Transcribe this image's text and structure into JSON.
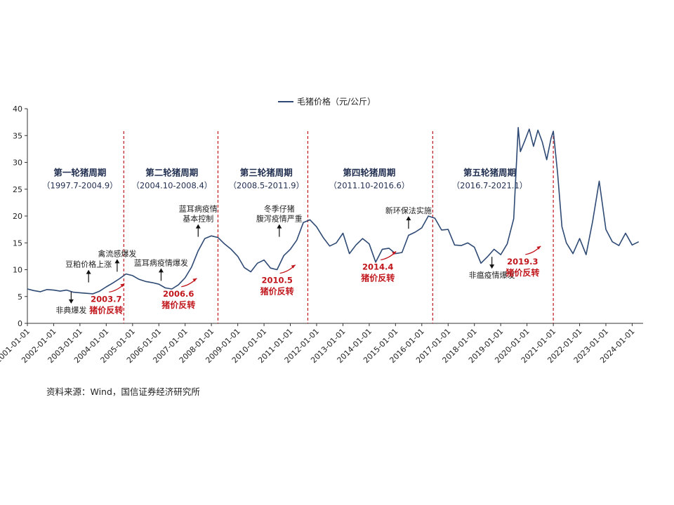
{
  "chart_data": {
    "type": "line",
    "legend": "毛猪价格（元/公斤）",
    "source": "资料来源：Wind，国信证券经济研究所",
    "ylim": [
      0,
      40
    ],
    "yticks": [
      0,
      5,
      10,
      15,
      20,
      25,
      30,
      35,
      40
    ],
    "xlim": [
      "2001-01-01",
      "2024-06-01"
    ],
    "xticks": [
      "2001-01-01",
      "2002-01-01",
      "2003-01-01",
      "2004-01-01",
      "2005-01-01",
      "2006-01-01",
      "2007-01-01",
      "2008-01-01",
      "2009-01-01",
      "2010-01-01",
      "2011-01-01",
      "2012-01-01",
      "2013-01-01",
      "2014-01-01",
      "2015-01-01",
      "2016-01-01",
      "2017-01-01",
      "2018-01-01",
      "2019-01-01",
      "2020-01-01",
      "2021-01-01",
      "2022-01-01",
      "2023-01-01",
      "2024-01-01"
    ],
    "series": [
      {
        "name": "毛猪价格（元/公斤）",
        "color": "#2e4a74",
        "points": [
          [
            "2001-01-01",
            6.4
          ],
          [
            "2001-04-01",
            6.1
          ],
          [
            "2001-07-01",
            5.9
          ],
          [
            "2001-10-01",
            6.3
          ],
          [
            "2002-01-01",
            6.2
          ],
          [
            "2002-04-01",
            6.0
          ],
          [
            "2002-07-01",
            6.2
          ],
          [
            "2002-10-01",
            5.8
          ],
          [
            "2003-01-01",
            5.7
          ],
          [
            "2003-04-01",
            5.6
          ],
          [
            "2003-07-01",
            5.5
          ],
          [
            "2003-10-01",
            6.0
          ],
          [
            "2004-01-01",
            6.8
          ],
          [
            "2004-04-01",
            7.5
          ],
          [
            "2004-07-01",
            8.3
          ],
          [
            "2004-10-01",
            9.2
          ],
          [
            "2005-01-01",
            8.9
          ],
          [
            "2005-04-01",
            8.2
          ],
          [
            "2005-07-01",
            7.8
          ],
          [
            "2005-10-01",
            7.6
          ],
          [
            "2006-01-01",
            7.3
          ],
          [
            "2006-04-01",
            6.6
          ],
          [
            "2006-07-01",
            6.4
          ],
          [
            "2006-10-01",
            7.2
          ],
          [
            "2007-01-01",
            8.5
          ],
          [
            "2007-04-01",
            10.5
          ],
          [
            "2007-07-01",
            13.5
          ],
          [
            "2007-10-01",
            15.8
          ],
          [
            "2008-01-01",
            16.3
          ],
          [
            "2008-04-01",
            16.0
          ],
          [
            "2008-07-01",
            14.8
          ],
          [
            "2008-10-01",
            13.8
          ],
          [
            "2009-01-01",
            12.5
          ],
          [
            "2009-04-01",
            10.4
          ],
          [
            "2009-07-01",
            9.6
          ],
          [
            "2009-10-01",
            11.2
          ],
          [
            "2010-01-01",
            11.8
          ],
          [
            "2010-04-01",
            10.3
          ],
          [
            "2010-07-01",
            10.0
          ],
          [
            "2010-10-01",
            12.6
          ],
          [
            "2011-01-01",
            13.8
          ],
          [
            "2011-04-01",
            15.5
          ],
          [
            "2011-07-01",
            18.8
          ],
          [
            "2011-10-01",
            19.3
          ],
          [
            "2012-01-01",
            18.0
          ],
          [
            "2012-04-01",
            16.0
          ],
          [
            "2012-07-01",
            14.4
          ],
          [
            "2012-10-01",
            15.0
          ],
          [
            "2013-01-01",
            16.8
          ],
          [
            "2013-04-01",
            13.0
          ],
          [
            "2013-07-01",
            14.6
          ],
          [
            "2013-10-01",
            15.8
          ],
          [
            "2014-01-01",
            14.8
          ],
          [
            "2014-04-01",
            11.4
          ],
          [
            "2014-07-01",
            13.8
          ],
          [
            "2014-10-01",
            14.0
          ],
          [
            "2015-01-01",
            13.0
          ],
          [
            "2015-04-01",
            13.2
          ],
          [
            "2015-07-01",
            16.4
          ],
          [
            "2015-10-01",
            17.0
          ],
          [
            "2016-01-01",
            17.8
          ],
          [
            "2016-04-01",
            20.0
          ],
          [
            "2016-07-01",
            19.6
          ],
          [
            "2016-10-01",
            17.4
          ],
          [
            "2017-01-01",
            17.5
          ],
          [
            "2017-04-01",
            14.6
          ],
          [
            "2017-07-01",
            14.5
          ],
          [
            "2017-10-01",
            15.0
          ],
          [
            "2018-01-01",
            14.2
          ],
          [
            "2018-04-01",
            11.2
          ],
          [
            "2018-07-01",
            12.4
          ],
          [
            "2018-10-01",
            13.8
          ],
          [
            "2019-01-01",
            12.8
          ],
          [
            "2019-04-01",
            14.8
          ],
          [
            "2019-07-01",
            19.5
          ],
          [
            "2019-09-01",
            36.5
          ],
          [
            "2019-10-01",
            32.0
          ],
          [
            "2019-12-01",
            34.0
          ],
          [
            "2020-02-01",
            36.2
          ],
          [
            "2020-04-01",
            33.0
          ],
          [
            "2020-06-01",
            36.0
          ],
          [
            "2020-08-01",
            33.8
          ],
          [
            "2020-10-01",
            30.5
          ],
          [
            "2020-12-01",
            34.5
          ],
          [
            "2021-01-01",
            35.8
          ],
          [
            "2021-03-01",
            28.0
          ],
          [
            "2021-05-01",
            18.0
          ],
          [
            "2021-07-01",
            15.0
          ],
          [
            "2021-10-01",
            13.0
          ],
          [
            "2022-01-01",
            15.8
          ],
          [
            "2022-04-01",
            12.8
          ],
          [
            "2022-07-01",
            19.0
          ],
          [
            "2022-10-01",
            26.5
          ],
          [
            "2023-01-01",
            17.5
          ],
          [
            "2023-04-01",
            15.2
          ],
          [
            "2023-07-01",
            14.5
          ],
          [
            "2023-10-01",
            16.8
          ],
          [
            "2024-01-01",
            14.6
          ],
          [
            "2024-04-01",
            15.2
          ]
        ]
      }
    ],
    "divider_dates": [
      "2004-09-01",
      "2008-04-01",
      "2011-09-01",
      "2016-06-01",
      "2021-01-01"
    ],
    "periods": [
      {
        "title": "第一轮猪周期",
        "range": "（1997.7-2004.9）",
        "date": "2003-01-01",
        "y": 26.5
      },
      {
        "title": "第二轮猪周期",
        "range": "（2004.10-2008.4）",
        "date": "2006-07-01",
        "y": 26.5
      },
      {
        "title": "第三轮猪周期",
        "range": "（2008.5-2011.9）",
        "date": "2010-02-01",
        "y": 26.5
      },
      {
        "title": "第四轮猪周期",
        "range": "（2011.10-2016.6）",
        "date": "2014-01-01",
        "y": 26.5
      },
      {
        "title": "第五轮猪周期",
        "range": "（2016.7-2021.1）",
        "date": "2018-08-01",
        "y": 26.5
      }
    ],
    "events": [
      {
        "lines": [
          "豆粕价格上涨"
        ],
        "date": "2003-05-01",
        "y": 10.5,
        "arrow": "up"
      },
      {
        "lines": [
          "禽流感爆发"
        ],
        "date": "2004-06-01",
        "y": 12.5,
        "arrow": "up"
      },
      {
        "lines": [
          "非典爆发"
        ],
        "date": "2002-09-01",
        "y": 2.5,
        "arrow": "down"
      },
      {
        "lines": [
          "蓝耳病疫情爆发"
        ],
        "date": "2006-02-01",
        "y": 10.8,
        "arrow": "up"
      },
      {
        "lines": [
          "蓝耳病疫情",
          "基本控制"
        ],
        "date": "2007-07-01",
        "y": 19.0,
        "arrow": "up"
      },
      {
        "lines": [
          "冬季仔猪",
          "腹泻疫情严重"
        ],
        "date": "2010-08-01",
        "y": 19.0,
        "arrow": "up"
      },
      {
        "lines": [
          "新环保法实施"
        ],
        "date": "2015-07-01",
        "y": 20.5,
        "arrow": "up"
      },
      {
        "lines": [
          "非瘟疫情爆发"
        ],
        "date": "2018-09-01",
        "y": 9.0,
        "arrow": "down"
      }
    ],
    "reversals": [
      {
        "date_label": "2003.7",
        "label": "猪价反转",
        "date": "2004-01-01",
        "y": 4.0
      },
      {
        "date_label": "2006.6",
        "label": "猪价反转",
        "date": "2006-10-01",
        "y": 5.0
      },
      {
        "date_label": "2010.5",
        "label": "猪价反转",
        "date": "2010-07-01",
        "y": 7.5
      },
      {
        "date_label": "2014.4",
        "label": "猪价反转",
        "date": "2014-05-01",
        "y": 10.0
      },
      {
        "date_label": "2019.3",
        "label": "猪价反转",
        "date": "2019-11-01",
        "y": 11.0
      }
    ]
  }
}
